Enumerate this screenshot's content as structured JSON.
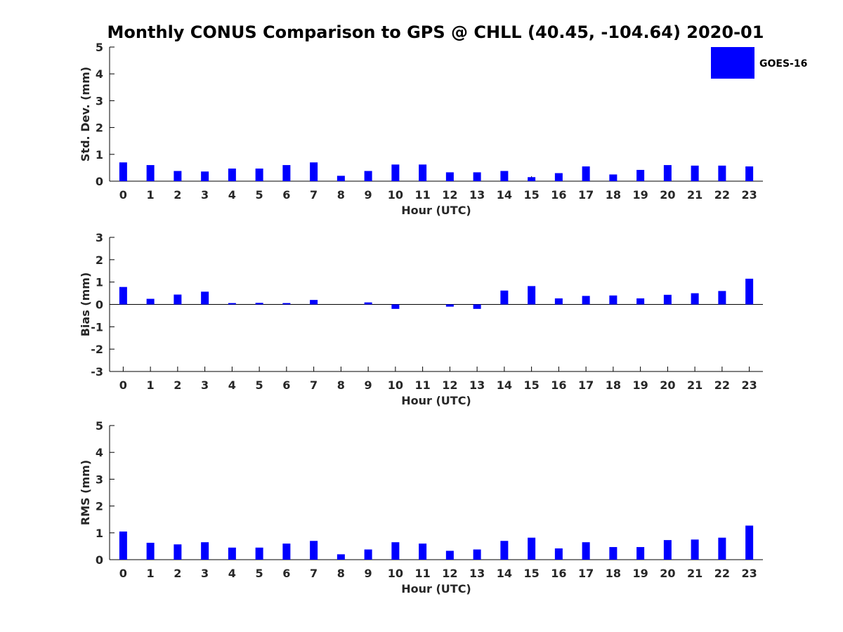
{
  "chart_data": {
    "title": "Monthly CONUS Comparison to GPS @ CHLL (40.45, -104.64) 2020-01",
    "legend": {
      "label": "GOES-16",
      "color": "#0000ff",
      "placement": "top-right"
    },
    "categories": [
      "0",
      "1",
      "2",
      "3",
      "4",
      "5",
      "6",
      "7",
      "8",
      "9",
      "10",
      "11",
      "12",
      "13",
      "14",
      "15",
      "16",
      "17",
      "18",
      "19",
      "20",
      "21",
      "22",
      "23"
    ],
    "bar_color": "#0000ff",
    "panels": [
      {
        "type": "bar",
        "ylabel": "Std. Dev. (mm)",
        "xlabel": "Hour (UTC)",
        "ylim": [
          0,
          5
        ],
        "yticks": [
          0,
          1,
          2,
          3,
          4,
          5
        ],
        "values": [
          0.7,
          0.6,
          0.38,
          0.36,
          0.47,
          0.47,
          0.6,
          0.7,
          0.2,
          0.38,
          0.62,
          0.62,
          0.33,
          0.33,
          0.38,
          0.15,
          0.3,
          0.55,
          0.25,
          0.42,
          0.6,
          0.58,
          0.58,
          0.55
        ]
      },
      {
        "type": "bar",
        "ylabel": "Bias (mm)",
        "xlabel": "Hour (UTC)",
        "ylim": [
          -3,
          3
        ],
        "yticks": [
          -3,
          -2,
          -1,
          0,
          1,
          2,
          3
        ],
        "values": [
          0.78,
          0.25,
          0.44,
          0.57,
          0.06,
          0.07,
          0.06,
          0.2,
          0.0,
          0.09,
          -0.2,
          0.0,
          -0.1,
          -0.2,
          0.62,
          0.82,
          0.27,
          0.38,
          0.4,
          0.27,
          0.43,
          0.5,
          0.6,
          1.15
        ]
      },
      {
        "type": "bar",
        "ylabel": "RMS (mm)",
        "xlabel": "Hour (UTC)",
        "ylim": [
          0,
          5
        ],
        "yticks": [
          0,
          1,
          2,
          3,
          4,
          5
        ],
        "values": [
          1.05,
          0.63,
          0.57,
          0.65,
          0.45,
          0.45,
          0.6,
          0.7,
          0.2,
          0.38,
          0.65,
          0.6,
          0.33,
          0.38,
          0.7,
          0.82,
          0.42,
          0.65,
          0.47,
          0.47,
          0.73,
          0.75,
          0.82,
          1.27
        ]
      }
    ]
  }
}
